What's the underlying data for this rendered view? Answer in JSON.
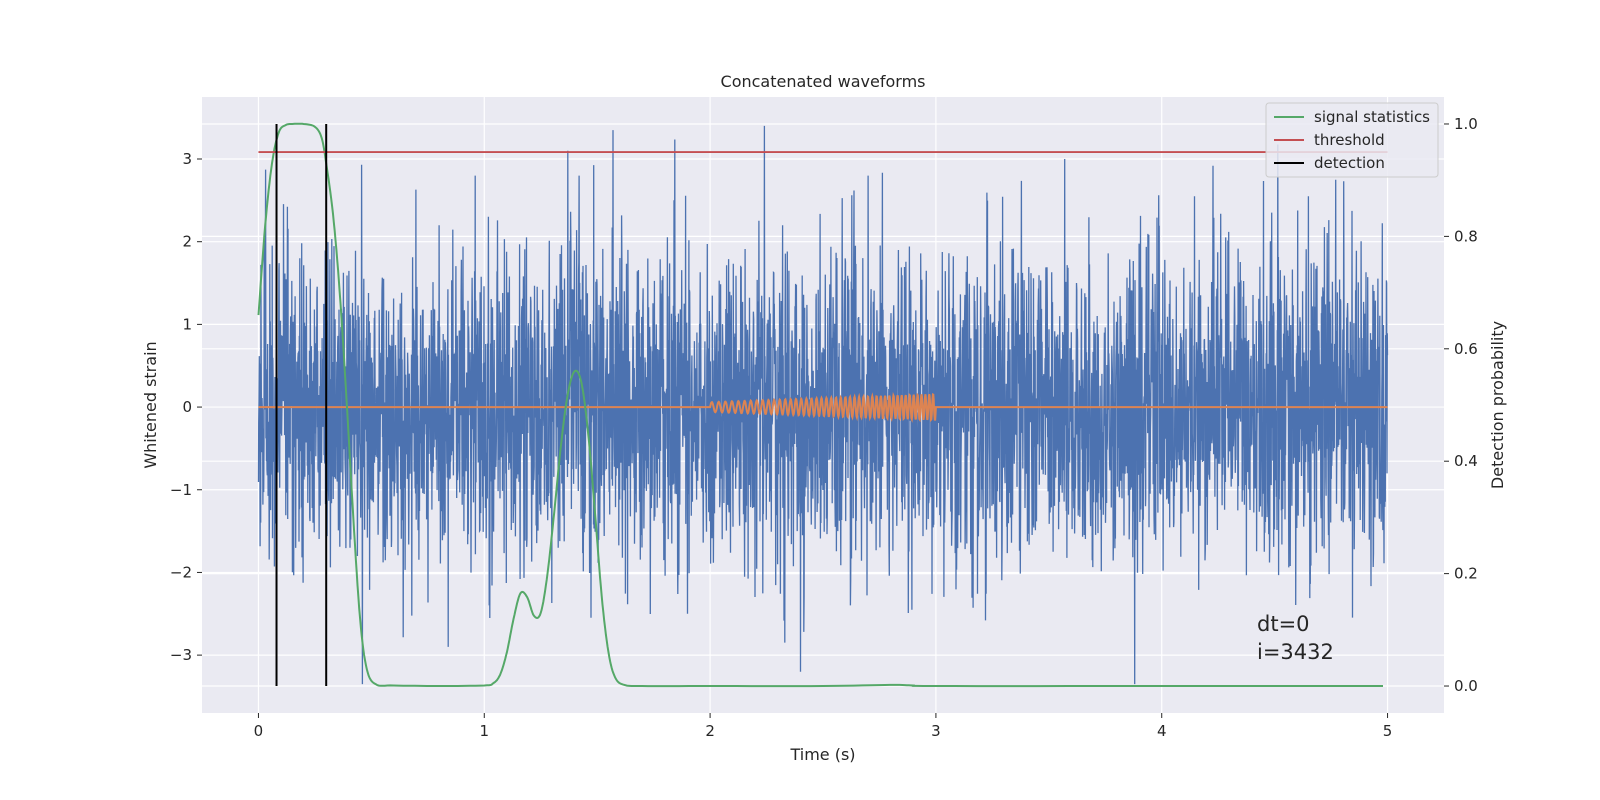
{
  "chart_data": {
    "type": "line",
    "title": "Concatenated waveforms",
    "xlabel": "Time (s)",
    "ylabel": "Whitened strain",
    "ylabel_right": "Detection probability",
    "xlim": [
      -0.25,
      5.25
    ],
    "ylim": [
      -3.7,
      3.75
    ],
    "ylim_right": [
      -0.048,
      1.048
    ],
    "xticks": [
      "0",
      "1",
      "2",
      "3",
      "4",
      "5"
    ],
    "yticks": [
      "−3",
      "−2",
      "−1",
      "0",
      "1",
      "2",
      "3"
    ],
    "yticks_right": [
      "0.0",
      "0.2",
      "0.4",
      "0.6",
      "0.8",
      "1.0"
    ],
    "grid": true,
    "legend_position": "top-right",
    "annotation": [
      "dt=0",
      "i=3432"
    ],
    "colors": {
      "strain": "#4c72b0",
      "waveform": "#dd8452",
      "statistics": "#55a868",
      "threshold": "#c44e52",
      "detection": "#000000",
      "background": "#eaeaf2",
      "grid": "#ffffff"
    },
    "series": [
      {
        "kind": "strain",
        "x_range": [
          0,
          5
        ],
        "y_min": -3.35,
        "y_max": 3.4,
        "samples": 4096,
        "peaks": [
          {
            "x": 0.46,
            "y": -3.35
          },
          {
            "x": 1.37,
            "y": 3.1
          },
          {
            "x": 1.42,
            "y": 2.8
          },
          {
            "x": 2.24,
            "y": 3.4
          },
          {
            "x": 1.57,
            "y": 3.35
          },
          {
            "x": 2.4,
            "y": -3.2
          },
          {
            "x": 3.88,
            "y": -3.35
          },
          {
            "x": 0.96,
            "y": 2.8
          },
          {
            "x": 2.7,
            "y": 2.8
          },
          {
            "x": 3.57,
            "y": 3.0
          },
          {
            "x": 4.77,
            "y": 2.75
          },
          {
            "x": 4.65,
            "y": 2.55
          },
          {
            "x": 0.84,
            "y": -2.9
          },
          {
            "x": 1.9,
            "y": -2.5
          }
        ]
      },
      {
        "kind": "waveform",
        "x_range": [
          0,
          5
        ],
        "chirp_start": 2.0,
        "chirp_end": 3.0,
        "amplitude_start": 0.06,
        "amplitude_end": 0.16,
        "cycles": 46
      },
      {
        "name": "signal statistics",
        "kind": "statistics",
        "x": [
          0,
          0.03,
          0.06,
          0.09,
          0.12,
          0.15,
          0.2,
          0.25,
          0.28,
          0.3,
          0.33,
          0.36,
          0.39,
          0.42,
          0.45,
          0.48,
          0.52,
          0.6,
          0.8,
          1.0,
          1.04,
          1.07,
          1.1,
          1.13,
          1.16,
          1.19,
          1.22,
          1.25,
          1.28,
          1.31,
          1.34,
          1.37,
          1.4,
          1.43,
          1.46,
          1.49,
          1.52,
          1.55,
          1.58,
          1.62,
          1.7,
          2.0,
          2.5,
          2.8,
          2.9,
          3.0,
          4.0,
          4.98
        ],
        "y": [
          0.66,
          0.82,
          0.93,
          0.985,
          0.998,
          1.0,
          1.0,
          0.995,
          0.975,
          0.93,
          0.84,
          0.7,
          0.51,
          0.3,
          0.12,
          0.03,
          0.003,
          0.001,
          0.0,
          0.001,
          0.005,
          0.02,
          0.06,
          0.12,
          0.165,
          0.158,
          0.125,
          0.13,
          0.2,
          0.31,
          0.43,
          0.52,
          0.56,
          0.54,
          0.45,
          0.31,
          0.16,
          0.06,
          0.015,
          0.002,
          0.0,
          0.0,
          0.0,
          0.002,
          0.001,
          0.0,
          0.0,
          0.0
        ]
      },
      {
        "name": "threshold",
        "kind": "threshold",
        "x": [
          0,
          5
        ],
        "y": [
          0.95,
          0.95
        ]
      },
      {
        "name": "detection",
        "kind": "detection",
        "x": [
          0.08,
          0.3
        ],
        "y_range": [
          0,
          1
        ]
      }
    ]
  }
}
